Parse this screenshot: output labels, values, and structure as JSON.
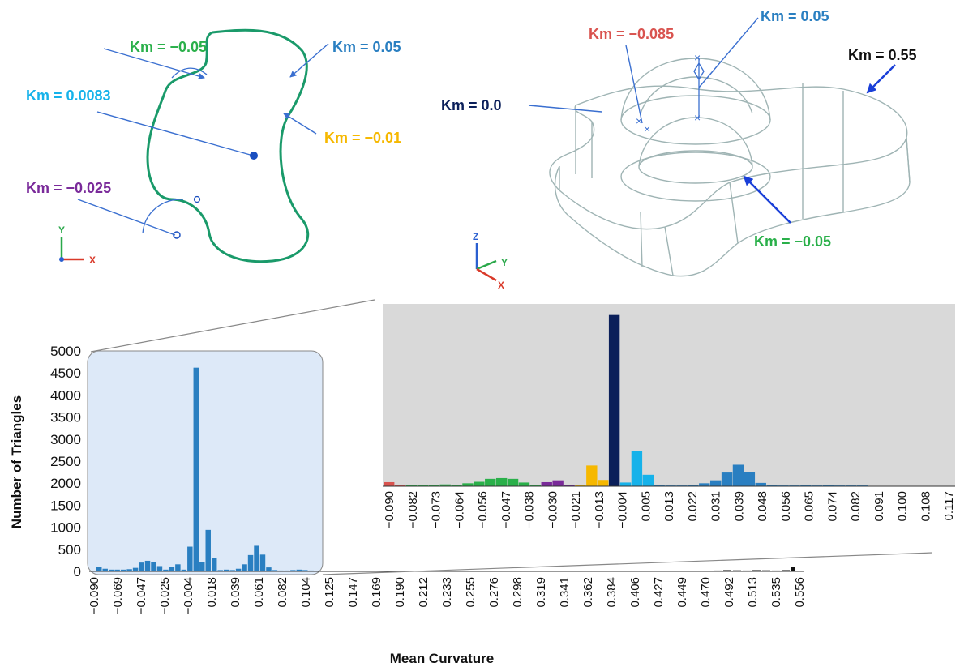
{
  "colors": {
    "green_curve": "#1a9a6a",
    "outline": "#9fb4b4",
    "blue": "#2a7fc1",
    "light_blue": "#16b2ea",
    "dark_navy": "#0b1f5a",
    "green": "#2ab04a",
    "yellow": "#f6b800",
    "purple": "#7a2a9a",
    "red": "#d9534f",
    "highlight_box": "#dde9f8",
    "inset_bg": "#d9d9d9",
    "axis_x": "#d93a2a",
    "axis_y": "#2aa84a",
    "axis_z": "#2a5fd0"
  },
  "left_figure": {
    "annotations": [
      {
        "text": "Km = −0.05",
        "color": "#2ab04a"
      },
      {
        "text": "Km = 0.05",
        "color": "#2a7fc1"
      },
      {
        "text": "Km = 0.0083",
        "color": "#16b2ea"
      },
      {
        "text": "Km = −0.01",
        "color": "#f6b800"
      },
      {
        "text": "Km = −0.025",
        "color": "#7a2a9a"
      }
    ],
    "triad": {
      "y": "Y",
      "x": "X"
    }
  },
  "right_figure": {
    "annotations": [
      {
        "text": "Km = −0.085",
        "color": "#d9534f"
      },
      {
        "text": "Km = 0.05",
        "color": "#2a7fc1"
      },
      {
        "text": "Km = 0.55",
        "color": "#111111"
      },
      {
        "text": "Km = 0.0",
        "color": "#0b1f5a"
      },
      {
        "text": "Km = −0.05",
        "color": "#2ab04a"
      }
    ],
    "triad": {
      "z": "Z",
      "y": "Y",
      "x": "X"
    }
  },
  "chart_data": [
    {
      "type": "bar",
      "xlabel": "Mean Curvature",
      "ylabel": "Number of Triangles",
      "ylim": [
        0,
        5000
      ],
      "y_ticks": [
        "0",
        "500",
        "1000",
        "1500",
        "2000",
        "2500",
        "3000",
        "3500",
        "4000",
        "4500",
        "5000"
      ],
      "x_tick_labels": [
        "−0.090",
        "−0.069",
        "−0.047",
        "−0.025",
        "−0.004",
        "0.018",
        "0.039",
        "0.061",
        "0.082",
        "0.104",
        "0.125",
        "0.147",
        "0.169",
        "0.190",
        "0.212",
        "0.233",
        "0.255",
        "0.276",
        "0.298",
        "0.319",
        "0.341",
        "0.362",
        "0.384",
        "0.406",
        "0.427",
        "0.449",
        "0.470",
        "0.492",
        "0.513",
        "0.535",
        "0.556"
      ],
      "bar_color": "#2a7fc1",
      "values": [
        100,
        60,
        40,
        40,
        40,
        50,
        80,
        200,
        240,
        210,
        120,
        40,
        110,
        160,
        40,
        560,
        4620,
        220,
        940,
        310,
        30,
        40,
        30,
        60,
        160,
        370,
        580,
        380,
        90,
        30,
        20,
        20,
        30,
        40,
        30,
        20
      ],
      "tail_values": [
        20,
        30,
        25,
        20,
        30,
        25,
        20,
        30,
        110
      ],
      "highlight_range": "−0.090 to 0.104"
    },
    {
      "type": "bar",
      "title": "",
      "x_tick_labels": [
        "−0.090",
        "−0.082",
        "−0.073",
        "−0.064",
        "−0.056",
        "−0.047",
        "−0.038",
        "−0.030",
        "−0.021",
        "−0.013",
        "−0.004",
        "0.005",
        "0.013",
        "0.022",
        "0.031",
        "0.039",
        "0.048",
        "0.056",
        "0.065",
        "0.074",
        "0.082",
        "0.091",
        "0.100",
        "0.108",
        "0.117"
      ],
      "ylim": [
        0,
        4700
      ],
      "bars": [
        {
          "v": 110,
          "c": "#d9534f"
        },
        {
          "v": 40,
          "c": "#d9534f"
        },
        {
          "v": 30,
          "c": "#2ab04a"
        },
        {
          "v": 40,
          "c": "#2ab04a"
        },
        {
          "v": 30,
          "c": "#2ab04a"
        },
        {
          "v": 50,
          "c": "#2ab04a"
        },
        {
          "v": 40,
          "c": "#2ab04a"
        },
        {
          "v": 80,
          "c": "#2ab04a"
        },
        {
          "v": 120,
          "c": "#2ab04a"
        },
        {
          "v": 200,
          "c": "#2ab04a"
        },
        {
          "v": 220,
          "c": "#2ab04a"
        },
        {
          "v": 200,
          "c": "#2ab04a"
        },
        {
          "v": 100,
          "c": "#2ab04a"
        },
        {
          "v": 40,
          "c": "#2ab04a"
        },
        {
          "v": 110,
          "c": "#7a2a9a"
        },
        {
          "v": 160,
          "c": "#7a2a9a"
        },
        {
          "v": 40,
          "c": "#7a2a9a"
        },
        {
          "v": 30,
          "c": "#f6b800"
        },
        {
          "v": 560,
          "c": "#f6b800"
        },
        {
          "v": 170,
          "c": "#f6b800"
        },
        {
          "v": 4620,
          "c": "#0b1f5a"
        },
        {
          "v": 100,
          "c": "#16b2ea"
        },
        {
          "v": 940,
          "c": "#16b2ea"
        },
        {
          "v": 310,
          "c": "#16b2ea"
        },
        {
          "v": 30,
          "c": "#2a7fc1"
        },
        {
          "v": 20,
          "c": "#2a7fc1"
        },
        {
          "v": 20,
          "c": "#2a7fc1"
        },
        {
          "v": 30,
          "c": "#2a7fc1"
        },
        {
          "v": 80,
          "c": "#2a7fc1"
        },
        {
          "v": 160,
          "c": "#2a7fc1"
        },
        {
          "v": 370,
          "c": "#2a7fc1"
        },
        {
          "v": 580,
          "c": "#2a7fc1"
        },
        {
          "v": 380,
          "c": "#2a7fc1"
        },
        {
          "v": 90,
          "c": "#2a7fc1"
        },
        {
          "v": 30,
          "c": "#2a7fc1"
        },
        {
          "v": 20,
          "c": "#2a7fc1"
        },
        {
          "v": 20,
          "c": "#2a7fc1"
        },
        {
          "v": 30,
          "c": "#2a7fc1"
        },
        {
          "v": 20,
          "c": "#2a7fc1"
        },
        {
          "v": 30,
          "c": "#2a7fc1"
        },
        {
          "v": 20,
          "c": "#2a7fc1"
        },
        {
          "v": 20,
          "c": "#2a7fc1"
        },
        {
          "v": 20,
          "c": "#2a7fc1"
        },
        {
          "v": 10,
          "c": "#2a7fc1"
        },
        {
          "v": 10,
          "c": "#2a7fc1"
        },
        {
          "v": 10,
          "c": "#2a7fc1"
        },
        {
          "v": 10,
          "c": "#2a7fc1"
        },
        {
          "v": 10,
          "c": "#2a7fc1"
        }
      ]
    }
  ]
}
